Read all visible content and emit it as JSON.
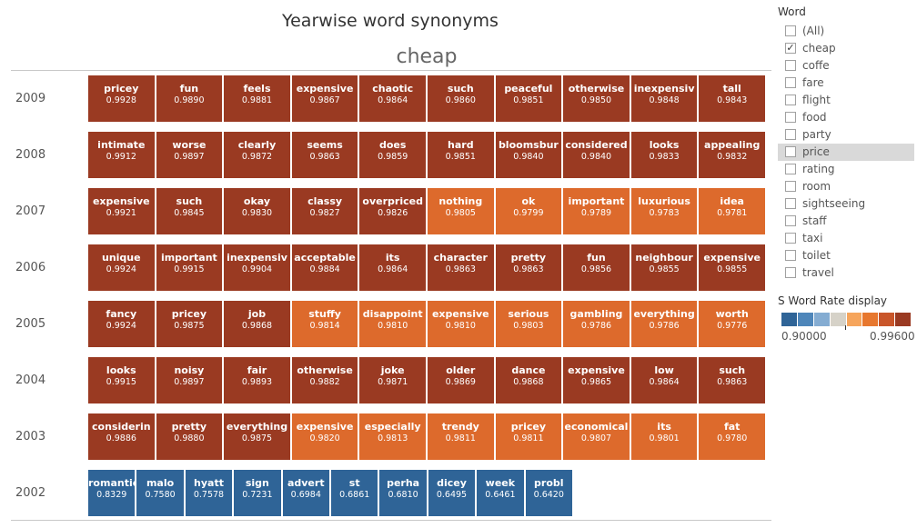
{
  "chart_data": {
    "type": "heatmap",
    "title": "Yearwise word synonyms",
    "subtitle": "cheap",
    "rows": [
      {
        "year": "2009",
        "cells": [
          {
            "word": "pricey",
            "rate": "0.9928"
          },
          {
            "word": "fun",
            "rate": "0.9890"
          },
          {
            "word": "feels",
            "rate": "0.9881"
          },
          {
            "word": "expensive",
            "rate": "0.9867"
          },
          {
            "word": "chaotic",
            "rate": "0.9864"
          },
          {
            "word": "such",
            "rate": "0.9860"
          },
          {
            "word": "peaceful",
            "rate": "0.9851"
          },
          {
            "word": "otherwise",
            "rate": "0.9850"
          },
          {
            "word": "inexpensiv",
            "rate": "0.9848"
          },
          {
            "word": "tall",
            "rate": "0.9843"
          }
        ]
      },
      {
        "year": "2008",
        "cells": [
          {
            "word": "intimate",
            "rate": "0.9912"
          },
          {
            "word": "worse",
            "rate": "0.9897"
          },
          {
            "word": "clearly",
            "rate": "0.9872"
          },
          {
            "word": "seems",
            "rate": "0.9863"
          },
          {
            "word": "does",
            "rate": "0.9859"
          },
          {
            "word": "hard",
            "rate": "0.9851"
          },
          {
            "word": "bloomsbur",
            "rate": "0.9840"
          },
          {
            "word": "considered",
            "rate": "0.9840"
          },
          {
            "word": "looks",
            "rate": "0.9833"
          },
          {
            "word": "appealing",
            "rate": "0.9832"
          }
        ]
      },
      {
        "year": "2007",
        "cells": [
          {
            "word": "expensive",
            "rate": "0.9921"
          },
          {
            "word": "such",
            "rate": "0.9845"
          },
          {
            "word": "okay",
            "rate": "0.9830"
          },
          {
            "word": "classy",
            "rate": "0.9827"
          },
          {
            "word": "overpriced",
            "rate": "0.9826"
          },
          {
            "word": "nothing",
            "rate": "0.9805"
          },
          {
            "word": "ok",
            "rate": "0.9799"
          },
          {
            "word": "important",
            "rate": "0.9789"
          },
          {
            "word": "luxurious",
            "rate": "0.9783"
          },
          {
            "word": "idea",
            "rate": "0.9781"
          }
        ]
      },
      {
        "year": "2006",
        "cells": [
          {
            "word": "unique",
            "rate": "0.9924"
          },
          {
            "word": "important",
            "rate": "0.9915"
          },
          {
            "word": "inexpensiv",
            "rate": "0.9904"
          },
          {
            "word": "acceptable",
            "rate": "0.9884"
          },
          {
            "word": "its",
            "rate": "0.9864"
          },
          {
            "word": "character",
            "rate": "0.9863"
          },
          {
            "word": "pretty",
            "rate": "0.9863"
          },
          {
            "word": "fun",
            "rate": "0.9856"
          },
          {
            "word": "neighbour",
            "rate": "0.9855"
          },
          {
            "word": "expensive",
            "rate": "0.9855"
          }
        ]
      },
      {
        "year": "2005",
        "cells": [
          {
            "word": "fancy",
            "rate": "0.9924"
          },
          {
            "word": "pricey",
            "rate": "0.9875"
          },
          {
            "word": "job",
            "rate": "0.9868"
          },
          {
            "word": "stuffy",
            "rate": "0.9814"
          },
          {
            "word": "disappoint",
            "rate": "0.9810"
          },
          {
            "word": "expensive",
            "rate": "0.9810"
          },
          {
            "word": "serious",
            "rate": "0.9803"
          },
          {
            "word": "gambling",
            "rate": "0.9786"
          },
          {
            "word": "everything",
            "rate": "0.9786"
          },
          {
            "word": "worth",
            "rate": "0.9776"
          }
        ]
      },
      {
        "year": "2004",
        "cells": [
          {
            "word": "looks",
            "rate": "0.9915"
          },
          {
            "word": "noisy",
            "rate": "0.9897"
          },
          {
            "word": "fair",
            "rate": "0.9893"
          },
          {
            "word": "otherwise",
            "rate": "0.9882"
          },
          {
            "word": "joke",
            "rate": "0.9871"
          },
          {
            "word": "older",
            "rate": "0.9869"
          },
          {
            "word": "dance",
            "rate": "0.9868"
          },
          {
            "word": "expensive",
            "rate": "0.9865"
          },
          {
            "word": "low",
            "rate": "0.9864"
          },
          {
            "word": "such",
            "rate": "0.9863"
          }
        ]
      },
      {
        "year": "2003",
        "cells": [
          {
            "word": "considerin",
            "rate": "0.9886"
          },
          {
            "word": "pretty",
            "rate": "0.9880"
          },
          {
            "word": "everything",
            "rate": "0.9875"
          },
          {
            "word": "expensive",
            "rate": "0.9820"
          },
          {
            "word": "especially",
            "rate": "0.9813"
          },
          {
            "word": "trendy",
            "rate": "0.9811"
          },
          {
            "word": "pricey",
            "rate": "0.9811"
          },
          {
            "word": "economical",
            "rate": "0.9807"
          },
          {
            "word": "its",
            "rate": "0.9801"
          },
          {
            "word": "fat",
            "rate": "0.9780"
          }
        ]
      },
      {
        "year": "2002",
        "cells": [
          {
            "word": "romantic",
            "rate": "0.8329"
          },
          {
            "word": "malo",
            "rate": "0.7580"
          },
          {
            "word": "hyatt",
            "rate": "0.7578"
          },
          {
            "word": "sign",
            "rate": "0.7231"
          },
          {
            "word": "advert",
            "rate": "0.6984"
          },
          {
            "word": "st",
            "rate": "0.6861"
          },
          {
            "word": "perha",
            "rate": "0.6810"
          },
          {
            "word": "dicey",
            "rate": "0.6495"
          },
          {
            "word": "week",
            "rate": "0.6461"
          },
          {
            "word": "probl",
            "rate": "0.6420"
          }
        ]
      }
    ],
    "color_bins": {
      "dark": {
        "min": 0.9825,
        "color": "#9a3a22"
      },
      "orange": {
        "min": 0.9,
        "color": "#dd6a2c"
      },
      "blue": {
        "min": 0,
        "color": "#2f6497"
      }
    }
  },
  "filter": {
    "title": "Word",
    "items": [
      {
        "label": "(All)",
        "checked": false
      },
      {
        "label": "cheap",
        "checked": true
      },
      {
        "label": "coffe",
        "checked": false
      },
      {
        "label": "fare",
        "checked": false
      },
      {
        "label": "flight",
        "checked": false
      },
      {
        "label": "food",
        "checked": false
      },
      {
        "label": "party",
        "checked": false
      },
      {
        "label": "price",
        "checked": false,
        "highlighted": true
      },
      {
        "label": "rating",
        "checked": false
      },
      {
        "label": "room",
        "checked": false
      },
      {
        "label": "sightseeing",
        "checked": false
      },
      {
        "label": "staff",
        "checked": false
      },
      {
        "label": "taxi",
        "checked": false
      },
      {
        "label": "toilet",
        "checked": false
      },
      {
        "label": "travel",
        "checked": false
      }
    ]
  },
  "legend": {
    "title": "S Word Rate display",
    "min_label": "0.90000",
    "max_label": "0.99600",
    "colors": [
      "#2f6497",
      "#4e86ba",
      "#84acd2",
      "#d6d2c8",
      "#f6a55c",
      "#e7772e",
      "#c9562a",
      "#9a3a22"
    ]
  }
}
